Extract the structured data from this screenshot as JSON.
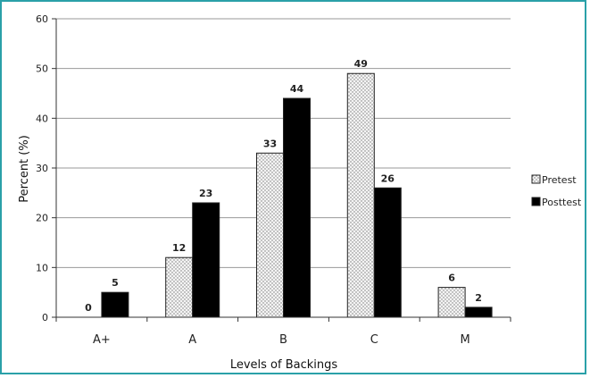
{
  "chart_data": {
    "type": "bar",
    "categories": [
      "A+",
      "A",
      "B",
      "C",
      "M"
    ],
    "series": [
      {
        "name": "Pretest",
        "values": [
          0,
          12,
          33,
          49,
          6
        ],
        "color": "#f2f2f2",
        "pattern": "dotted"
      },
      {
        "name": "Posttest",
        "values": [
          5,
          23,
          44,
          26,
          2
        ],
        "color": "#000000",
        "pattern": "solid"
      }
    ],
    "title": "",
    "xlabel": "Levels of Backings",
    "ylabel": "Percent (%)",
    "ylim": [
      0,
      60
    ],
    "yticks": [
      0,
      10,
      20,
      30,
      40,
      50,
      60
    ],
    "grid": true,
    "legend": "right"
  }
}
